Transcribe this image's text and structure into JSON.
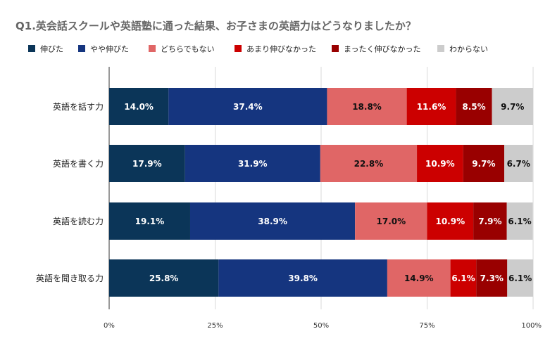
{
  "chart_data": {
    "type": "bar",
    "orientation": "horizontal",
    "stacked": true,
    "percent": true,
    "title": "Q1.英会話スクールや英語塾に通った結果、お子さまの英語力はどうなりましたか？",
    "categories": [
      "英語を話す力",
      "英語を書く力",
      "英語を読む力",
      "英語を聞き取る力"
    ],
    "series": [
      {
        "name": "伸びた",
        "color": "#0b3558",
        "label_color": "#ffffff",
        "values": [
          14.0,
          17.9,
          19.1,
          25.8
        ],
        "labels": [
          "14.0%",
          "17.9%",
          "19.1%",
          "25.8%"
        ]
      },
      {
        "name": "やや伸びた",
        "color": "#15357f",
        "label_color": "#ffffff",
        "values": [
          37.4,
          31.9,
          38.9,
          39.8
        ],
        "labels": [
          "37.4%",
          "31.9%",
          "38.9%",
          "39.8%"
        ]
      },
      {
        "name": "どちらでもない",
        "color": "#e06666",
        "label_color": "#111111",
        "values": [
          18.8,
          22.8,
          17.0,
          14.9
        ],
        "labels": [
          "18.8%",
          "22.8%",
          "17.0%",
          "14.9%"
        ]
      },
      {
        "name": "あまり伸びなかった",
        "color": "#cc0000",
        "label_color": "#ffffff",
        "values": [
          11.6,
          10.9,
          10.9,
          6.1
        ],
        "labels": [
          "11.6%",
          "10.9%",
          "10.9%",
          "6.1%"
        ]
      },
      {
        "name": "まったく伸びなかった",
        "color": "#990000",
        "label_color": "#ffffff",
        "values": [
          8.5,
          9.7,
          7.9,
          7.3
        ],
        "labels": [
          "8.5%",
          "9.7%",
          "7.9%",
          "7.3%"
        ]
      },
      {
        "name": "わからない",
        "color": "#cccccc",
        "label_color": "#111111",
        "values": [
          9.7,
          6.7,
          6.1,
          6.1
        ],
        "labels": [
          "9.7%",
          "6.7%",
          "6.1%",
          "6.1%"
        ]
      }
    ],
    "x_ticks": [
      "0%",
      "25%",
      "50%",
      "75%",
      "100%"
    ],
    "xlim": [
      0,
      100
    ],
    "grid": true,
    "legend_position": "top"
  }
}
